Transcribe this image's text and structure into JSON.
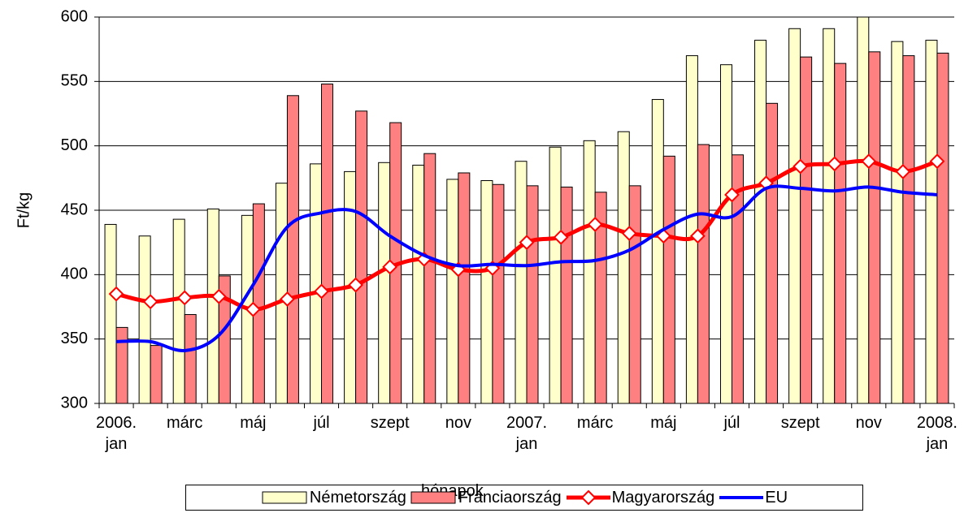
{
  "chart_data": {
    "type": "bar",
    "ylabel": "Ft/kg",
    "xlabel": "hónapok",
    "categories": [
      "2006. jan",
      null,
      "márc",
      null,
      "máj",
      null,
      "júl",
      null,
      "szept",
      null,
      "nov",
      null,
      "2007. jan",
      null,
      "márc",
      null,
      "máj",
      null,
      "júl",
      null,
      "szept",
      null,
      "nov",
      null,
      "2008. jan"
    ],
    "ylim": [
      300,
      600
    ],
    "yticks": [
      300,
      350,
      400,
      450,
      500,
      550,
      600
    ],
    "grid": true,
    "legend": "bottom",
    "series": [
      {
        "name": "Németország",
        "type": "bar",
        "color": "#ffffcc",
        "values": [
          439,
          430,
          443,
          451,
          446,
          471,
          486,
          480,
          487,
          485,
          474,
          473,
          488,
          499,
          504,
          511,
          536,
          570,
          563,
          582,
          591,
          591,
          600,
          581,
          582
        ]
      },
      {
        "name": "Franciaország",
        "type": "bar",
        "color": "#ff8080",
        "values": [
          359,
          345,
          369,
          399,
          455,
          539,
          548,
          527,
          518,
          494,
          479,
          470,
          469,
          468,
          464,
          469,
          492,
          501,
          493,
          533,
          569,
          564,
          573,
          570,
          572
        ]
      },
      {
        "name": "Magyarország",
        "type": "line",
        "color": "#ff0000",
        "marker": "diamond",
        "values": [
          385,
          379,
          382,
          383,
          373,
          381,
          387,
          392,
          406,
          412,
          404,
          405,
          425,
          429,
          439,
          432,
          430,
          430,
          462,
          471,
          484,
          486,
          488,
          480,
          488
        ]
      },
      {
        "name": "EU",
        "type": "line",
        "color": "#0000ff",
        "values": [
          348,
          348,
          341,
          353,
          392,
          437,
          448,
          449,
          430,
          415,
          407,
          408,
          407,
          410,
          411,
          419,
          435,
          447,
          445,
          467,
          467,
          465,
          468,
          464,
          462
        ]
      }
    ]
  }
}
